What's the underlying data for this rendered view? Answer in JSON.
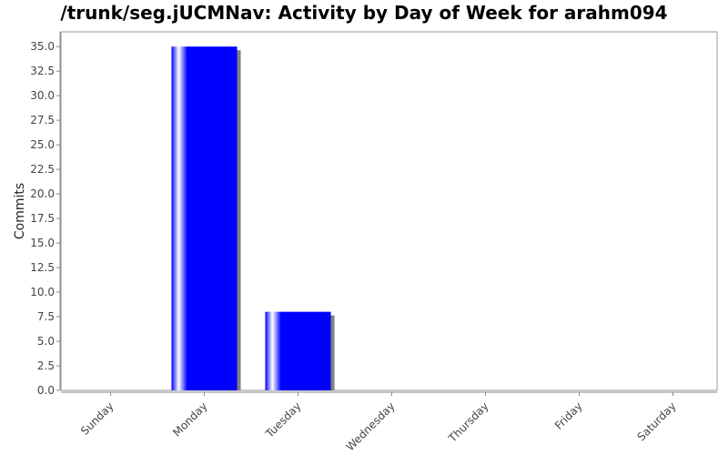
{
  "chart_data": {
    "type": "bar",
    "title": "/trunk/seg.jUCMNav: Activity by Day of Week for arahm094",
    "xlabel": "",
    "ylabel": "Commits",
    "categories": [
      "Sunday",
      "Monday",
      "Tuesday",
      "Wednesday",
      "Thursday",
      "Friday",
      "Saturday"
    ],
    "values": [
      0,
      35,
      8,
      0,
      0,
      0,
      0
    ],
    "ylim": [
      0,
      36.5
    ],
    "yticks": [
      "0.0",
      "2.5",
      "5.0",
      "7.5",
      "10.0",
      "12.5",
      "15.0",
      "17.5",
      "20.0",
      "22.5",
      "25.0",
      "27.5",
      "30.0",
      "32.5",
      "35.0"
    ],
    "grid": false,
    "legend": "none",
    "bar_color": "#0000ff",
    "shadow_color": "#808080"
  }
}
